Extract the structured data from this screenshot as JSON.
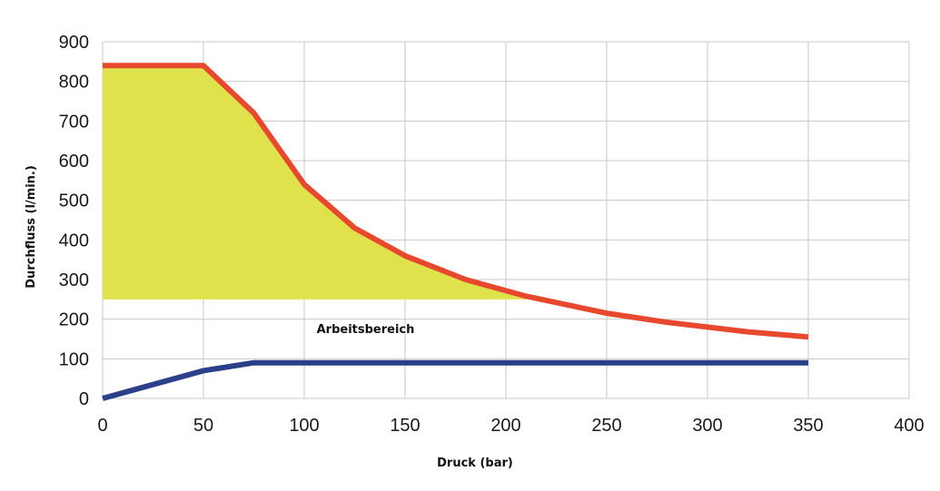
{
  "chart_data": {
    "type": "line",
    "title": "",
    "xlabel": "Druck (bar)",
    "ylabel": "Durchfluss (l/min.)",
    "xlim": [
      0,
      400
    ],
    "ylim": [
      0,
      900
    ],
    "xticks": [
      0,
      50,
      100,
      150,
      200,
      250,
      300,
      350,
      400
    ],
    "yticks": [
      0,
      100,
      200,
      300,
      400,
      500,
      600,
      700,
      800,
      900
    ],
    "grid": true,
    "series": [
      {
        "color": "#e8482e",
        "x": [
          0,
          50,
          75,
          100,
          125,
          150,
          180,
          210,
          250,
          280,
          320,
          350
        ],
        "y": [
          840,
          840,
          720,
          540,
          430,
          360,
          300,
          258,
          215,
          192,
          168,
          155
        ]
      },
      {
        "color": "#2b3f8a",
        "x": [
          0,
          50,
          75,
          350
        ],
        "y": [
          0,
          70,
          90,
          90
        ]
      }
    ],
    "area": {
      "color": "#dfe24a",
      "lower": 250,
      "follows_series": 0
    },
    "annotations": [
      {
        "text": "Arbeitsbereich",
        "x": 125,
        "y": 165
      }
    ]
  }
}
